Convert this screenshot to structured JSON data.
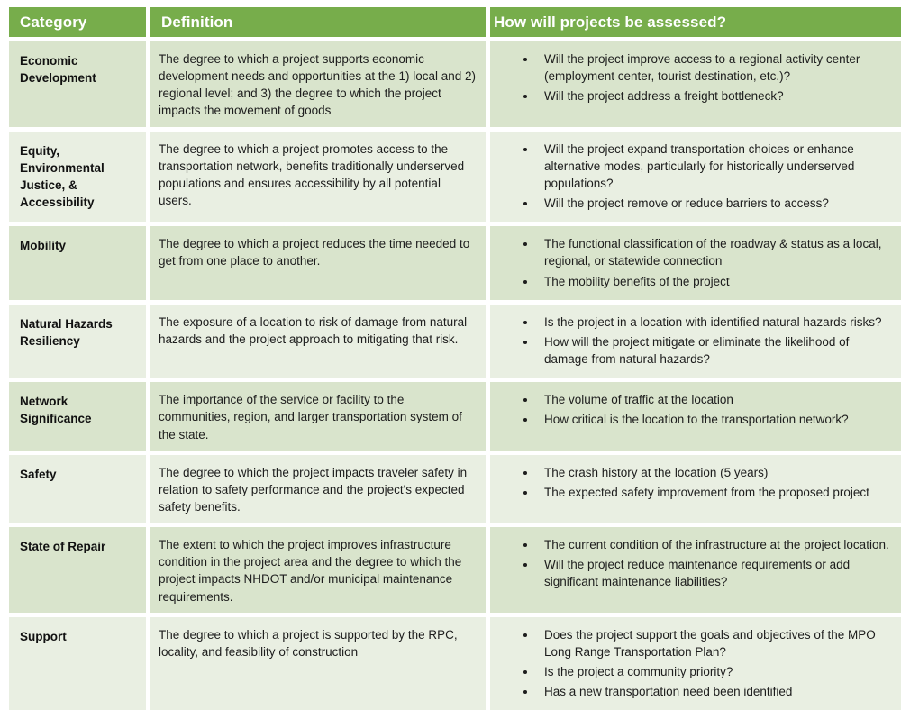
{
  "colors": {
    "header_bg": "#77AD4B",
    "header_text": "#FFFFFF",
    "row_band_dark": "#D9E4CC",
    "row_band_light": "#E9EFE2",
    "body_text": "#1D1D1D"
  },
  "table": {
    "headers": {
      "category": "Category",
      "definition": "Definition",
      "assessment": "How will projects be assessed?"
    },
    "rows": [
      {
        "category": "Economic Development",
        "definition": "The degree to which a project supports economic development needs and opportunities at the 1) local and 2) regional level; and 3) the degree to which the project impacts the movement of goods",
        "bullets": [
          "Will the project improve access to a regional activity center (employment center, tourist destination, etc.)?",
          "Will the project address a freight bottleneck?"
        ]
      },
      {
        "category": "Equity, Environmental Justice, & Accessibility",
        "definition": "The degree to which a project promotes access to the transportation network, benefits traditionally underserved populations and ensures accessibility by all potential users.",
        "bullets": [
          "Will the project expand transportation choices or enhance alternative modes, particularly for historically underserved populations?",
          "Will the project remove or reduce barriers to access?"
        ]
      },
      {
        "category": "Mobility",
        "definition": "The degree to which a project reduces the time needed to get from one place to another.",
        "bullets": [
          "The functional classification of the roadway & status as a local, regional, or statewide connection",
          "The mobility benefits of the project"
        ]
      },
      {
        "category": "Natural Hazards Resiliency",
        "definition": "The exposure of a location to risk of damage from natural hazards and the project approach to mitigating that risk.",
        "bullets": [
          "Is the project in a location with identified natural hazards risks?",
          "How will the project mitigate or eliminate the likelihood of damage from natural hazards?"
        ]
      },
      {
        "category": "Network Significance",
        "definition": "The importance of the service or facility to the communities, region, and larger transportation system of the state.",
        "bullets": [
          "The volume of traffic at the location",
          "How critical is the location to the transportation network?"
        ]
      },
      {
        "category": "Safety",
        "definition": "The degree to which the project impacts traveler safety in relation to safety performance and the project's expected safety benefits.",
        "bullets": [
          "The crash history at the location (5 years)",
          "The expected safety improvement from the proposed project"
        ]
      },
      {
        "category": "State of Repair",
        "definition": "The extent to which the project improves infrastructure condition in the project area and the degree to which the project impacts NHDOT and/or municipal maintenance requirements.",
        "bullets": [
          "The current condition of the infrastructure at the project location.",
          "Will the project reduce maintenance requirements or add significant maintenance liabilities?"
        ]
      },
      {
        "category": "Support",
        "definition": "The degree to which a project is supported by the RPC, locality, and feasibility of construction",
        "bullets": [
          "Does the project support the goals and objectives of the MPO Long Range Transportation Plan?",
          "Is the project a community priority?",
          "Has a new transportation need been identified"
        ]
      }
    ]
  }
}
